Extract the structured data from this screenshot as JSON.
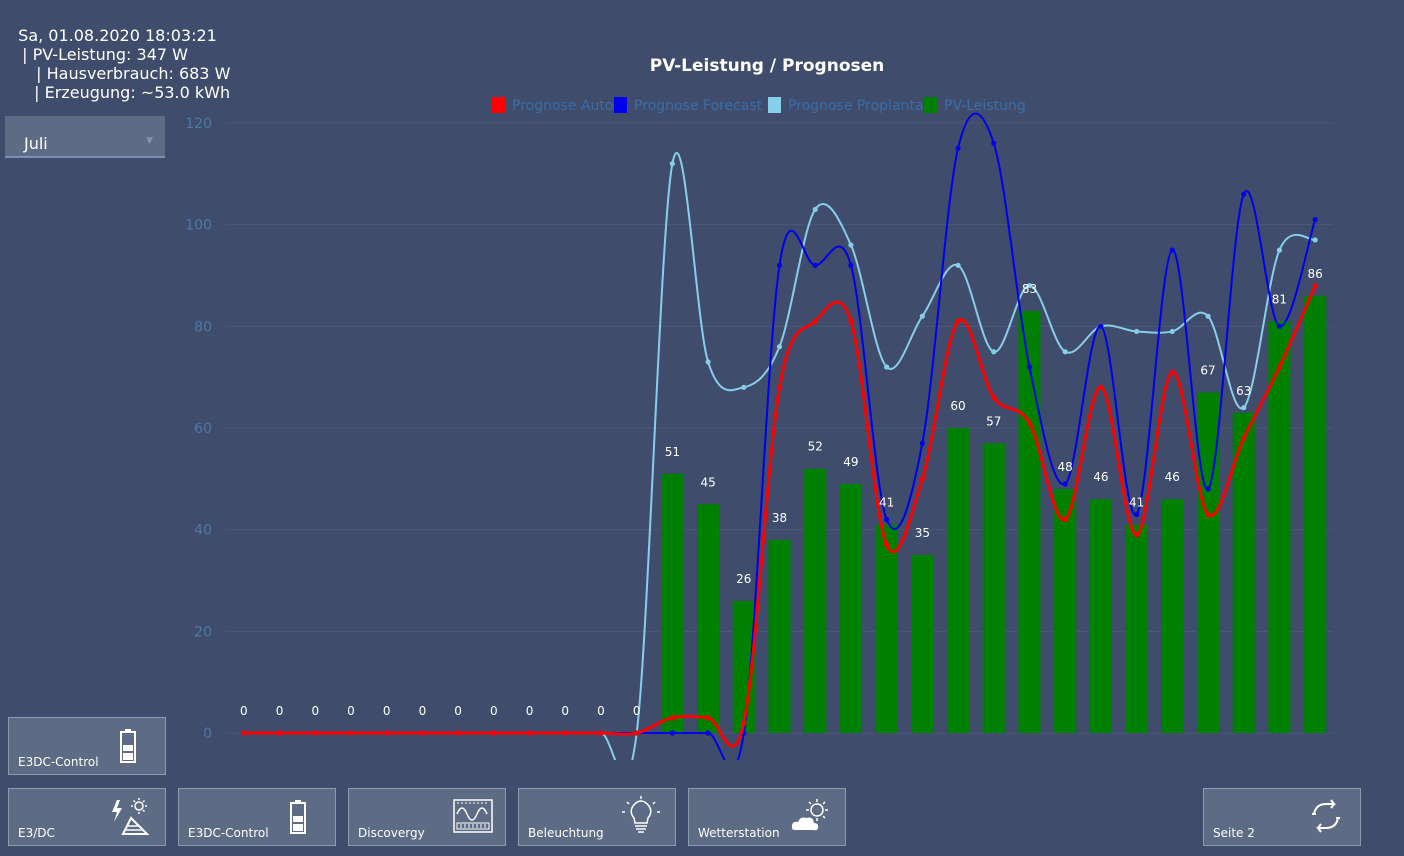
{
  "status": {
    "datetime": "Sa, 01.08.2020 18:03:21",
    "pv": "| PV-Leistung: 347 W",
    "haus": "| Hausverbrauch: 683 W",
    "erzeugung": "| Erzeugung: ~53.0 kWh"
  },
  "month_select": {
    "value": "Juli"
  },
  "tiles": {
    "e3dc_control_top": "E3DC-Control",
    "e3dc": "E3/DC",
    "e3dc_control": "E3DC-Control",
    "discovergy": "Discovergy",
    "beleuchtung": "Beleuchtung",
    "wetterstation": "Wetterstation",
    "seite2": "Seite 2"
  },
  "icons": {
    "battery": "battery-icon",
    "solar": "solar-panel-icon",
    "meter": "meter-icon",
    "bulb": "light-bulb-icon",
    "weather": "weather-icon",
    "refresh": "refresh-icon"
  },
  "chart_data": {
    "type": "bar",
    "title": "PV-Leistung / Prognosen",
    "ylim": [
      0,
      120
    ],
    "yticks": [
      0,
      20,
      40,
      60,
      80,
      100,
      120
    ],
    "grid": true,
    "legend_position": "top-center",
    "bar_series": {
      "name": "PV-Leistung",
      "color": "#008000",
      "values": [
        0,
        0,
        0,
        0,
        0,
        0,
        0,
        0,
        0,
        0,
        0,
        0,
        51,
        45,
        26,
        38,
        52,
        49,
        41,
        35,
        60,
        57,
        83,
        48,
        46,
        41,
        46,
        67,
        63,
        81,
        86
      ]
    },
    "line_series": [
      {
        "name": "Prognose Auto",
        "color": "#ff0000",
        "values": [
          0,
          0,
          0,
          0,
          0,
          0,
          0,
          0,
          0,
          0,
          0,
          0,
          3,
          3,
          2,
          68,
          81,
          81,
          37,
          50,
          81,
          66,
          61,
          42,
          68,
          39,
          71,
          43,
          58,
          72,
          88
        ]
      },
      {
        "name": "Prognose Forecast",
        "color": "#0000ee",
        "values": [
          0,
          0,
          0,
          0,
          0,
          0,
          0,
          0,
          0,
          0,
          0,
          0,
          0,
          0,
          0,
          92,
          92,
          92,
          42,
          57,
          115,
          116,
          72,
          49,
          80,
          43,
          95,
          48,
          106,
          80,
          101
        ]
      },
      {
        "name": "Prognose Proplanta",
        "color": "#87ceeb",
        "values": [
          0,
          0,
          0,
          0,
          0,
          0,
          0,
          0,
          0,
          0,
          0,
          0,
          112,
          73,
          68,
          76,
          103,
          96,
          72,
          82,
          92,
          75,
          88,
          75,
          80,
          79,
          79,
          82,
          64,
          95,
          97
        ]
      }
    ]
  }
}
